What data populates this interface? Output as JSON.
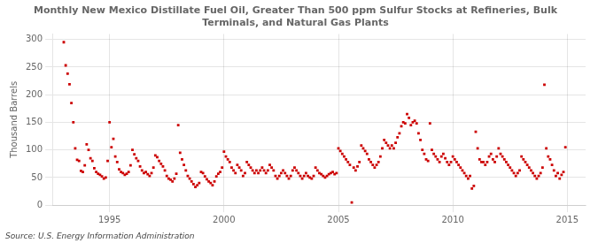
{
  "chart_data": {
    "type": "scatter",
    "title": [
      "Monthly New Mexico Distillate Fuel Oil, Greater Than 500 ppm Sulfur Stocks at Refineries, Bulk",
      "Terminals, and Natural Gas Plants"
    ],
    "ylabel": "Thousand Barrels",
    "source": "Source: U.S. Energy Information Administration",
    "color": "#cc0000",
    "marker": "square",
    "grid": true,
    "xlim": [
      1992.5,
      2015.8
    ],
    "xticks": [
      1995,
      2000,
      2005,
      2010,
      2015
    ],
    "ylim": [
      0,
      310
    ],
    "yticks": [
      0,
      50,
      100,
      150,
      200,
      250,
      300
    ],
    "x": [
      1993.0,
      1993.083,
      1993.167,
      1993.25,
      1993.333,
      1993.417,
      1993.5,
      1993.583,
      1993.667,
      1993.75,
      1993.833,
      1993.917,
      1994.0,
      1994.083,
      1994.167,
      1994.25,
      1994.333,
      1994.417,
      1994.5,
      1994.583,
      1994.667,
      1994.75,
      1994.833,
      1994.917,
      1995.0,
      1995.083,
      1995.167,
      1995.25,
      1995.333,
      1995.417,
      1995.5,
      1995.583,
      1995.667,
      1995.75,
      1995.833,
      1995.917,
      1996.0,
      1996.083,
      1996.167,
      1996.25,
      1996.333,
      1996.417,
      1996.5,
      1996.583,
      1996.667,
      1996.75,
      1996.833,
      1996.917,
      1997.0,
      1997.083,
      1997.167,
      1997.25,
      1997.333,
      1997.417,
      1997.5,
      1997.583,
      1997.667,
      1997.75,
      1997.833,
      1997.917,
      1998.0,
      1998.083,
      1998.167,
      1998.25,
      1998.333,
      1998.417,
      1998.5,
      1998.583,
      1998.667,
      1998.75,
      1998.833,
      1998.917,
      1999.0,
      1999.083,
      1999.167,
      1999.25,
      1999.333,
      1999.417,
      1999.5,
      1999.583,
      1999.667,
      1999.75,
      1999.833,
      1999.917,
      2000.0,
      2000.083,
      2000.167,
      2000.25,
      2000.333,
      2000.417,
      2000.5,
      2000.583,
      2000.667,
      2000.75,
      2000.833,
      2000.917,
      2001.0,
      2001.083,
      2001.167,
      2001.25,
      2001.333,
      2001.417,
      2001.5,
      2001.583,
      2001.667,
      2001.75,
      2001.833,
      2001.917,
      2002.0,
      2002.083,
      2002.167,
      2002.25,
      2002.333,
      2002.417,
      2002.5,
      2002.583,
      2002.667,
      2002.75,
      2002.833,
      2002.917,
      2003.0,
      2003.083,
      2003.167,
      2003.25,
      2003.333,
      2003.417,
      2003.5,
      2003.583,
      2003.667,
      2003.75,
      2003.833,
      2003.917,
      2004.0,
      2004.083,
      2004.167,
      2004.25,
      2004.333,
      2004.417,
      2004.5,
      2004.583,
      2004.667,
      2004.75,
      2004.833,
      2004.917,
      2005.0,
      2005.083,
      2005.167,
      2005.25,
      2005.333,
      2005.417,
      2005.5,
      2005.583,
      2005.667,
      2005.75,
      2005.833,
      2005.917,
      2006.0,
      2006.083,
      2006.167,
      2006.25,
      2006.333,
      2006.417,
      2006.5,
      2006.583,
      2006.667,
      2006.75,
      2006.833,
      2006.917,
      2007.0,
      2007.083,
      2007.167,
      2007.25,
      2007.333,
      2007.417,
      2007.5,
      2007.583,
      2007.667,
      2007.75,
      2007.833,
      2007.917,
      2008.0,
      2008.083,
      2008.167,
      2008.25,
      2008.333,
      2008.417,
      2008.5,
      2008.583,
      2008.667,
      2008.75,
      2008.833,
      2008.917,
      2009.0,
      2009.083,
      2009.167,
      2009.25,
      2009.333,
      2009.417,
      2009.5,
      2009.583,
      2009.667,
      2009.75,
      2009.833,
      2009.917,
      2010.0,
      2010.083,
      2010.167,
      2010.25,
      2010.333,
      2010.417,
      2010.5,
      2010.583,
      2010.667,
      2010.75,
      2010.833,
      2010.917,
      2011.0,
      2011.083,
      2011.167,
      2011.25,
      2011.333,
      2011.417,
      2011.5,
      2011.583,
      2011.667,
      2011.75,
      2011.833,
      2011.917,
      2012.0,
      2012.083,
      2012.167,
      2012.25,
      2012.333,
      2012.417,
      2012.5,
      2012.583,
      2012.667,
      2012.75,
      2012.833,
      2012.917,
      2013.0,
      2013.083,
      2013.167,
      2013.25,
      2013.333,
      2013.417,
      2013.5,
      2013.583,
      2013.667,
      2013.75,
      2013.833,
      2013.917,
      2014.0,
      2014.083,
      2014.167,
      2014.25,
      2014.333,
      2014.417,
      2014.5,
      2014.583,
      2014.667,
      2014.75,
      2014.833,
      2014.917
    ],
    "values": [
      295,
      253,
      238,
      219,
      185,
      150,
      103,
      82,
      80,
      62,
      60,
      72,
      110,
      100,
      85,
      80,
      67,
      60,
      57,
      55,
      52,
      48,
      50,
      80,
      150,
      105,
      120,
      88,
      78,
      65,
      60,
      58,
      55,
      57,
      60,
      72,
      100,
      92,
      85,
      80,
      70,
      63,
      58,
      60,
      56,
      53,
      58,
      68,
      90,
      87,
      80,
      75,
      70,
      63,
      53,
      48,
      46,
      43,
      48,
      57,
      145,
      95,
      83,
      73,
      63,
      53,
      48,
      43,
      38,
      33,
      36,
      40,
      60,
      58,
      52,
      47,
      43,
      40,
      36,
      43,
      52,
      57,
      60,
      68,
      97,
      88,
      83,
      78,
      68,
      63,
      58,
      73,
      68,
      63,
      53,
      58,
      78,
      73,
      68,
      63,
      58,
      63,
      58,
      63,
      68,
      63,
      58,
      63,
      73,
      68,
      63,
      53,
      48,
      53,
      58,
      63,
      58,
      53,
      48,
      53,
      63,
      68,
      63,
      58,
      53,
      48,
      53,
      58,
      53,
      50,
      48,
      53,
      68,
      63,
      58,
      56,
      53,
      50,
      53,
      56,
      58,
      60,
      56,
      58,
      103,
      98,
      93,
      88,
      83,
      78,
      73,
      5,
      68,
      63,
      70,
      78,
      108,
      103,
      98,
      93,
      83,
      78,
      73,
      68,
      73,
      78,
      88,
      103,
      118,
      113,
      108,
      103,
      108,
      103,
      113,
      123,
      130,
      143,
      150,
      148,
      165,
      158,
      145,
      150,
      153,
      148,
      130,
      118,
      100,
      93,
      83,
      80,
      148,
      100,
      93,
      88,
      83,
      78,
      88,
      93,
      85,
      78,
      73,
      78,
      88,
      83,
      78,
      73,
      68,
      63,
      58,
      53,
      48,
      53,
      30,
      35,
      133,
      103,
      83,
      78,
      78,
      73,
      78,
      88,
      93,
      83,
      78,
      88,
      103,
      93,
      88,
      83,
      78,
      73,
      68,
      63,
      58,
      53,
      58,
      63,
      88,
      83,
      78,
      73,
      68,
      63,
      58,
      53,
      48,
      53,
      58,
      68,
      218,
      103,
      88,
      83,
      73,
      63,
      53,
      58,
      48,
      55,
      60,
      105
    ]
  }
}
